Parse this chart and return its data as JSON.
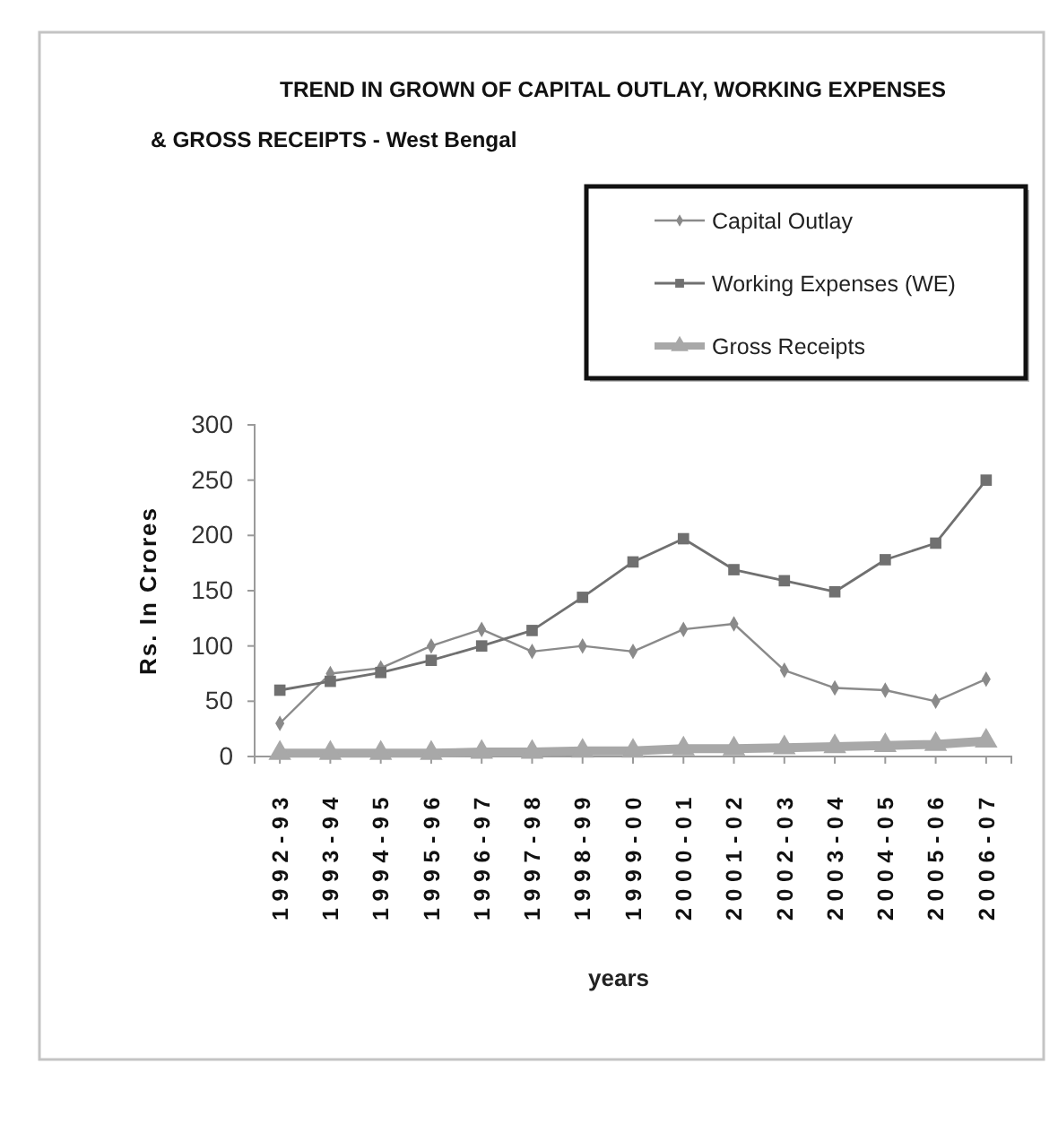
{
  "chart_data": {
    "type": "line",
    "title": "TREND IN GROWN OF CAPITAL OUTLAY, WORKING EXPENSES & GROSS RECEIPTS - West Bengal",
    "xlabel": "years",
    "ylabel": "Rs. In Crores",
    "categories": [
      "1992-93",
      "1993-94",
      "1994-95",
      "1995-96",
      "1996-97",
      "1997-98",
      "1998-99",
      "1999-00",
      "2000-01",
      "2001-02",
      "2002-03",
      "2003-04",
      "2004-05",
      "2005-06",
      "2006-07"
    ],
    "series": [
      {
        "name": "Capital Outlay",
        "color": "#8a8a8a",
        "marker": "diamond",
        "values": [
          30,
          75,
          80,
          100,
          115,
          95,
          100,
          95,
          115,
          120,
          78,
          62,
          60,
          50,
          70
        ]
      },
      {
        "name": "Working Expenses (WE)",
        "color": "#707070",
        "marker": "square",
        "values": [
          60,
          68,
          76,
          87,
          100,
          114,
          144,
          176,
          197,
          169,
          159,
          149,
          178,
          193,
          250
        ]
      },
      {
        "name": "Gross Receipts",
        "color": "#a8a8a8",
        "marker": "triangle",
        "values": [
          3,
          3,
          3,
          3,
          4,
          4,
          5,
          5,
          7,
          7,
          8,
          9,
          10,
          11,
          14
        ]
      }
    ],
    "ylim": [
      0,
      300
    ],
    "yticks": [
      0,
      50,
      100,
      150,
      200,
      250,
      300
    ],
    "legend": "top right"
  }
}
